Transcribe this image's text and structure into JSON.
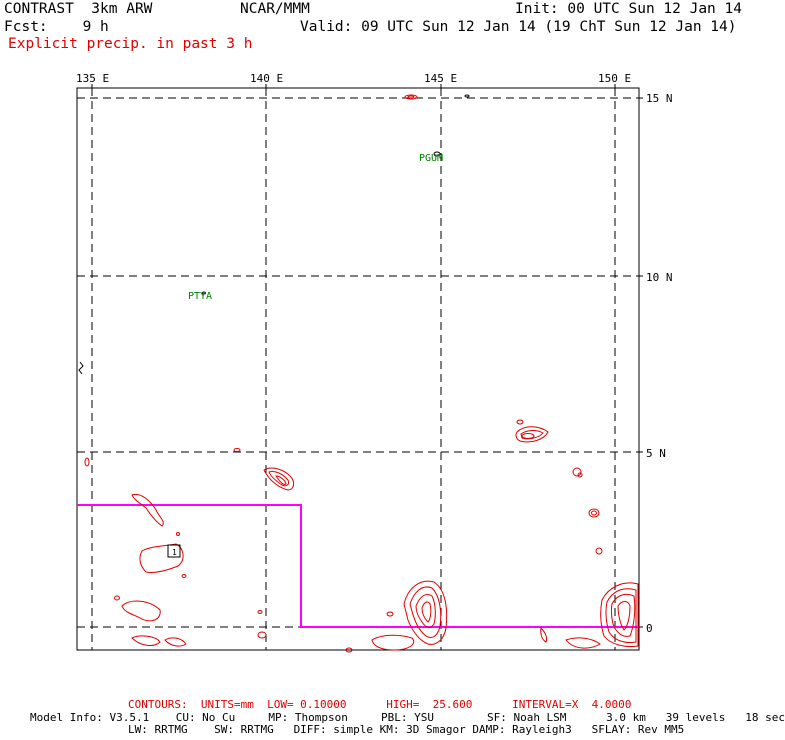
{
  "header": {
    "model": "CONTRAST  3km ARW",
    "org": "NCAR/MMM",
    "init": "Init: 00 UTC Sun 12 Jan 14",
    "fcst": "Fcst:    9 h",
    "valid": "Valid: 09 UTC Sun 12 Jan 14 (19 ChT Sun 12 Jan 14)",
    "field": "Explicit precip. in past 3 h"
  },
  "map": {
    "lon_labels": [
      "135 E",
      "140 E",
      "145 E",
      "150 E"
    ],
    "lat_labels": [
      "15 N",
      "10 N",
      "5 N",
      "0"
    ],
    "stations": [
      {
        "id": "PGUM",
        "lon": 144.8,
        "lat": 13.4
      },
      {
        "id": "PTYA",
        "lon": 138.1,
        "lat": 9.5
      }
    ],
    "colors": {
      "contour": "#e00000",
      "domain_box": "#ff00ff",
      "station": "#008000",
      "grid": "#000000"
    }
  },
  "footer": {
    "contours": "CONTOURS:  UNITS=mm  LOW= 0.10000      HIGH=  25.600      INTERVAL=X  4.0000",
    "model_info_1": "Model Info: V3.5.1    CU: No Cu     MP: Thompson     PBL: YSU        SF: Noah LSM      3.0 km   39 levels   18 sec",
    "model_info_2": "LW: RRTMG    SW: RRTMG   DIFF: simple KM: 3D Smagor DAMP: Rayleigh3   SFLAY: Rev MM5"
  }
}
